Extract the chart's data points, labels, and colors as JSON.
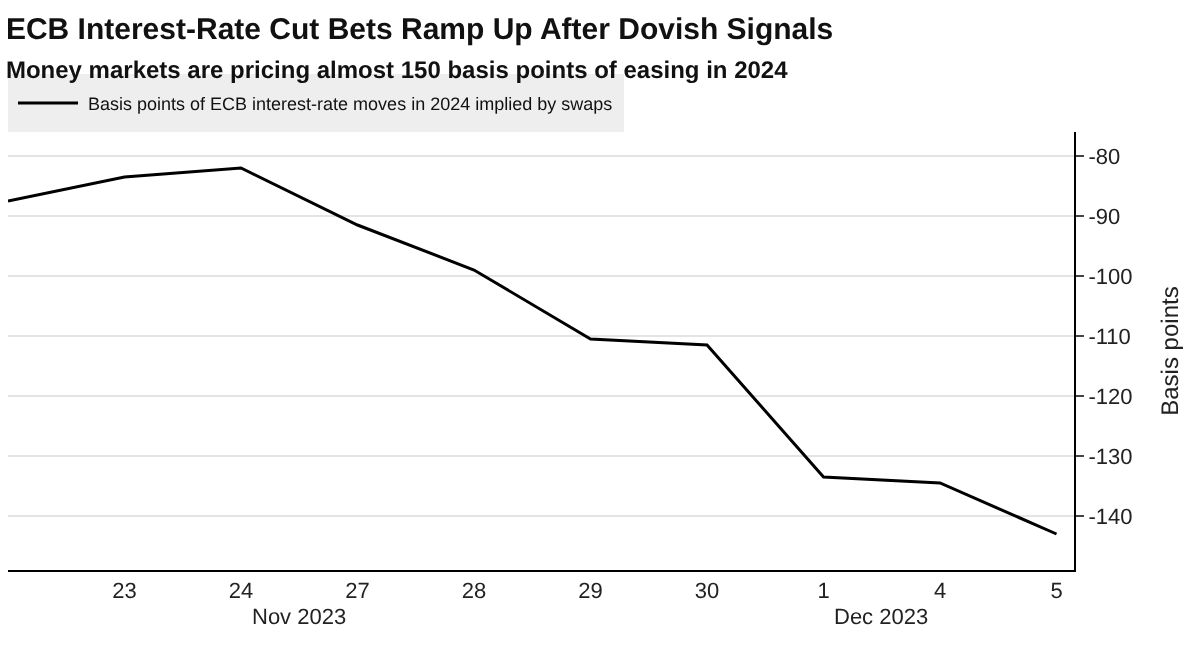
{
  "chart_data": {
    "type": "line",
    "title": "ECB Interest-Rate Cut Bets Ramp Up After Dovish Signals",
    "subtitle": "Money markets are pricing almost 150 basis points of easing in 2024",
    "ylabel": "Basis points",
    "categories": [
      null,
      "23",
      "24",
      "27",
      "28",
      "29",
      "30",
      "1",
      "4",
      "5"
    ],
    "series": [
      {
        "name": "Basis points of ECB interest-rate moves in 2024 implied by swaps",
        "color": "#000000",
        "values": [
          -87.5,
          -83.5,
          -82,
          -91.5,
          -99,
          -110.5,
          -111.5,
          -133.5,
          -134.5,
          -143
        ]
      }
    ],
    "annotations": [
      "Nov 2023",
      "Dec 2023"
    ],
    "ylim": [
      -149,
      -76
    ],
    "yticks": [
      -80,
      -90,
      -100,
      -110,
      -120,
      -130,
      -140
    ],
    "grid": "y",
    "legend": "top left",
    "marker": "none",
    "line_style": "solid"
  }
}
